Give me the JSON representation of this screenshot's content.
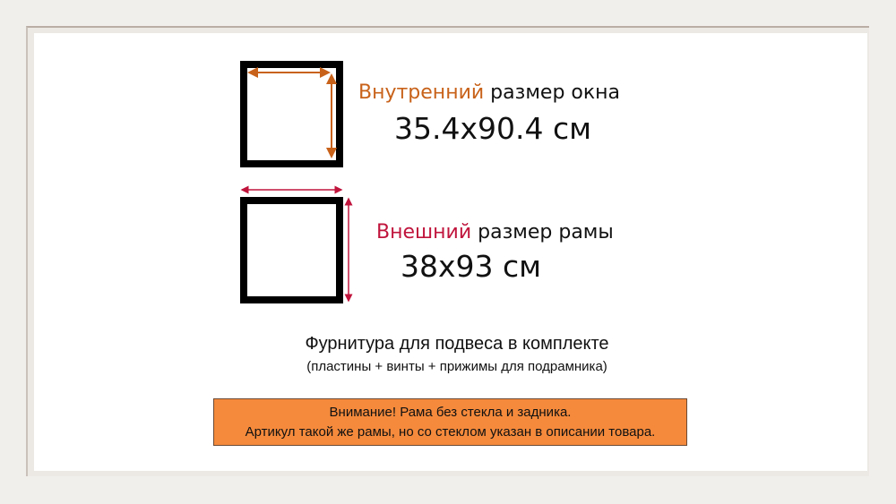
{
  "inner": {
    "highlight": "Внутренний",
    "rest": " размер окна",
    "size": "35.4x90.4 см"
  },
  "outer": {
    "highlight": "Внешний",
    "rest": " размер рамы",
    "size": "38x93 см"
  },
  "hardware": {
    "title": "Фурнитура для подвеса в комплекте",
    "subtitle": "(пластины + винты + прижимы для подрамника)"
  },
  "notice": {
    "line1": "Внимание! Рама без стекла и задника.",
    "line2": "Артикул такой же рамы, но со стеклом указан в описании товара."
  },
  "colors": {
    "inner_accent": "#c8621a",
    "outer_accent": "#c0143c",
    "notice_bg": "#f58a3c"
  }
}
